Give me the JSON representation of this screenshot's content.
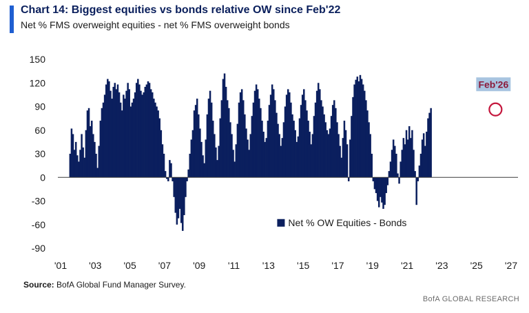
{
  "header": {
    "title": "Chart 14: Biggest equities vs bonds relative OW since Feb'22",
    "subtitle": "Net % FMS overweight equities - net % FMS overweight bonds"
  },
  "footer": {
    "source_label": "Source:",
    "source_text": " BofA Global Fund Manager Survey.",
    "brand": "BofA GLOBAL RESEARCH"
  },
  "colors": {
    "bar": "#0b1f5e",
    "accent": "#1f5fd1",
    "callout_bg": "#a8c4e0",
    "callout_text": "#8b1a3a",
    "circle": "#c4163c"
  },
  "chart_data": {
    "type": "bar",
    "title": "Chart 14: Biggest equities vs bonds relative OW since Feb'22",
    "subtitle": "Net % FMS overweight equities - net % FMS overweight bonds",
    "x_tick_labels": [
      "'01",
      "'03",
      "'05",
      "'07",
      "'09",
      "'11",
      "'13",
      "'15",
      "'17",
      "'19",
      "'21",
      "'23",
      "'25",
      "'27"
    ],
    "x_tick_years": [
      2001,
      2003,
      2005,
      2007,
      2009,
      2011,
      2013,
      2015,
      2017,
      2019,
      2021,
      2023,
      2025,
      2027
    ],
    "y_ticks": [
      150,
      120,
      90,
      60,
      30,
      0,
      -30,
      -60,
      -90
    ],
    "ylim": [
      -90,
      150
    ],
    "xlim": [
      2001,
      2027
    ],
    "legend": {
      "position": "inside-lower-right",
      "label": "Net % OW Equities - Bonds"
    },
    "annotation": {
      "label": "Feb'26",
      "year": 2026.1,
      "value": 88
    },
    "series": [
      {
        "name": "Net % OW Equities - Bonds",
        "start_year": 2001.5,
        "step_years": 0.0833,
        "values": [
          30,
          62,
          55,
          35,
          45,
          28,
          20,
          35,
          55,
          38,
          25,
          60,
          85,
          88,
          65,
          72,
          55,
          45,
          30,
          12,
          40,
          72,
          88,
          95,
          105,
          118,
          125,
          122,
          110,
          100,
          115,
          120,
          112,
          118,
          108,
          95,
          85,
          105,
          100,
          110,
          120,
          112,
          90,
          95,
          100,
          108,
          120,
          125,
          118,
          110,
          105,
          108,
          115,
          118,
          122,
          120,
          112,
          108,
          100,
          95,
          90,
          85,
          75,
          60,
          42,
          30,
          8,
          -2,
          -5,
          22,
          18,
          -5,
          -25,
          -45,
          -60,
          -52,
          -40,
          -58,
          -68,
          -48,
          -25,
          -5,
          10,
          30,
          48,
          60,
          85,
          92,
          100,
          80,
          62,
          45,
          28,
          18,
          48,
          80,
          100,
          110,
          95,
          72,
          55,
          38,
          22,
          40,
          75,
          98,
          125,
          132,
          115,
          98,
          88,
          70,
          55,
          35,
          20,
          42,
          68,
          95,
          108,
          112,
          98,
          80,
          62,
          48,
          35,
          55,
          78,
          95,
          110,
          118,
          112,
          100,
          88,
          72,
          58,
          45,
          50,
          72,
          92,
          105,
          118,
          112,
          98,
          82,
          68,
          55,
          40,
          50,
          70,
          90,
          105,
          112,
          108,
          95,
          80,
          72,
          60,
          45,
          52,
          75,
          92,
          105,
          112,
          98,
          85,
          72,
          58,
          42,
          55,
          78,
          95,
          110,
          120,
          112,
          98,
          90,
          80,
          70,
          60,
          55,
          62,
          78,
          92,
          98,
          88,
          70,
          55,
          40,
          25,
          50,
          72,
          60,
          42,
          -5,
          48,
          78,
          102,
          118,
          124,
          128,
          122,
          130,
          125,
          118,
          110,
          98,
          85,
          70,
          55,
          30,
          -5,
          -15,
          -20,
          -30,
          -38,
          -25,
          -32,
          -40,
          -35,
          -20,
          -10,
          8,
          20,
          35,
          48,
          40,
          30,
          5,
          -8,
          20,
          35,
          50,
          42,
          60,
          48,
          65,
          50,
          60,
          35,
          8,
          -35,
          -5,
          15,
          30,
          48,
          56,
          40,
          58,
          75,
          82,
          88
        ]
      }
    ]
  }
}
